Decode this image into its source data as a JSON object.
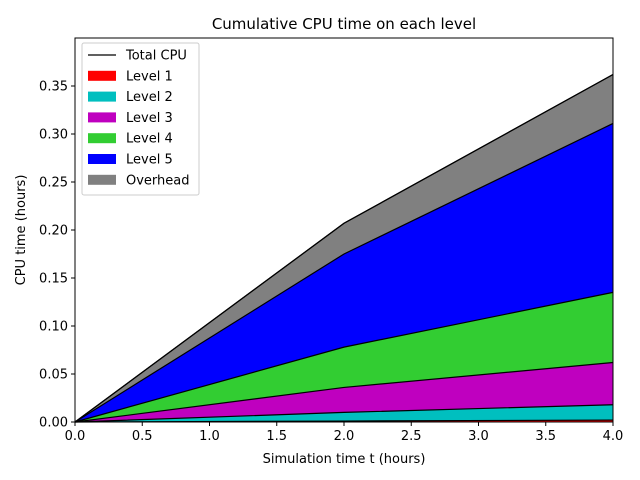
{
  "chart_data": {
    "type": "area",
    "title": "Cumulative CPU time on each level",
    "xlabel": "Simulation time t (hours)",
    "ylabel": "CPU time (hours)",
    "xlim": [
      0,
      4
    ],
    "ylim": [
      0,
      0.4
    ],
    "x_ticks": [
      "0.0",
      "0.5",
      "1.0",
      "1.5",
      "2.0",
      "2.5",
      "3.0",
      "3.5",
      "4.0"
    ],
    "y_ticks": [
      "0.00",
      "0.05",
      "0.10",
      "0.15",
      "0.20",
      "0.25",
      "0.30",
      "0.35"
    ],
    "x_tick_values": [
      0,
      0.5,
      1,
      1.5,
      2,
      2.5,
      3,
      3.5,
      4
    ],
    "y_tick_values": [
      0,
      0.05,
      0.1,
      0.15,
      0.2,
      0.25,
      0.3,
      0.35
    ],
    "grid": false,
    "legend_position": "top-left",
    "stacked": true,
    "x": [
      0,
      2,
      4
    ],
    "total": {
      "name": "Total CPU",
      "color": "#000000",
      "values": [
        0,
        0.207,
        0.362
      ]
    },
    "series": [
      {
        "name": "Level 1",
        "color": "#ff0000",
        "values": [
          0,
          0.001,
          0.002
        ]
      },
      {
        "name": "Level 2",
        "color": "#00bfbf",
        "values": [
          0,
          0.009,
          0.016
        ]
      },
      {
        "name": "Level 3",
        "color": "#bf00bf",
        "values": [
          0,
          0.026,
          0.044
        ]
      },
      {
        "name": "Level 4",
        "color": "#32cd32",
        "values": [
          0,
          0.042,
          0.073
        ]
      },
      {
        "name": "Level 5",
        "color": "#0000ff",
        "values": [
          0,
          0.097,
          0.176
        ]
      },
      {
        "name": "Overhead",
        "color": "#808080",
        "values": [
          0,
          0.032,
          0.051
        ]
      }
    ]
  }
}
